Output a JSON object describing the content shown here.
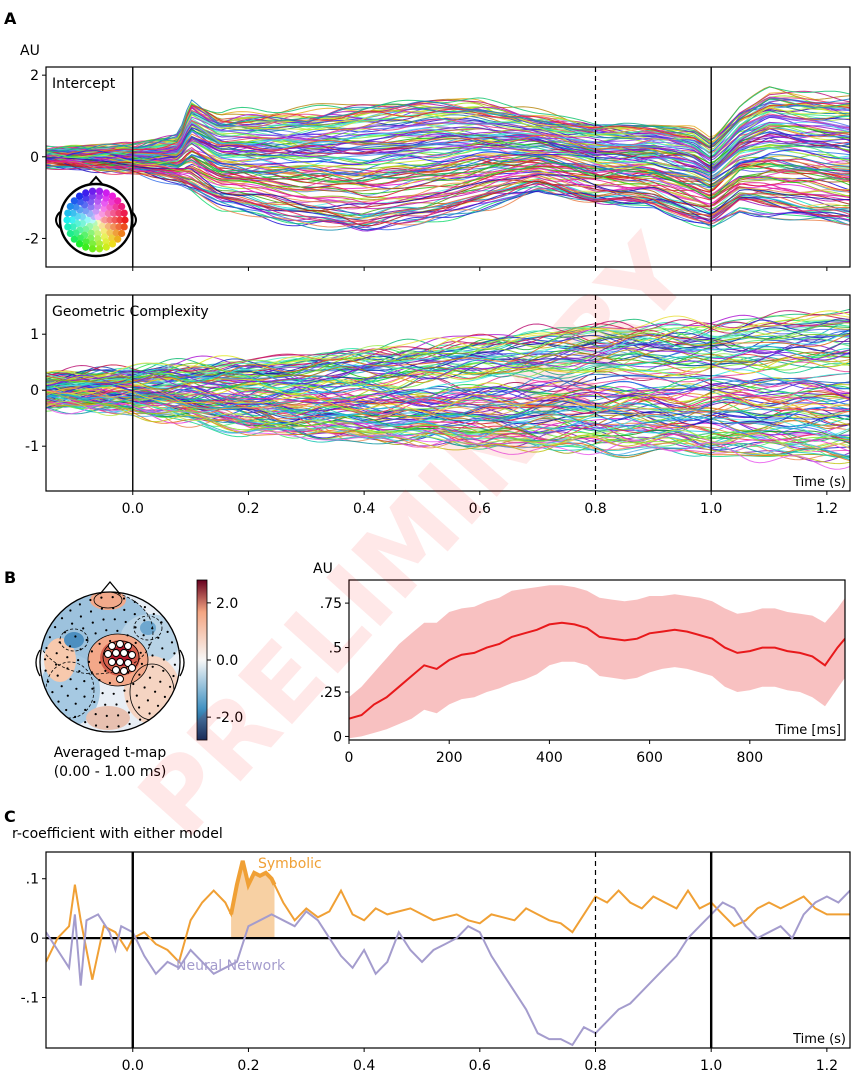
{
  "watermark": "PRELIMINARY",
  "panel_labels": {
    "a": "A",
    "b": "B",
    "c": "C"
  },
  "chart_data": [
    {
      "id": "A-intercept",
      "type": "line",
      "title": "Intercept",
      "ylabel": "AU",
      "xlabel": "Time (s)",
      "xlim": [
        -0.15,
        1.24
      ],
      "ylim": [
        -2.7,
        2.2
      ],
      "y_ticks": [
        {
          "v": 2,
          "label": "2"
        },
        {
          "v": 0,
          "label": "0"
        },
        {
          "v": -2,
          "label": "-2"
        }
      ],
      "x_ticks": [
        0.0,
        0.2,
        0.4,
        0.6,
        0.8,
        1.0,
        1.2
      ],
      "vlines": [
        {
          "x": 0.0,
          "style": "solid"
        },
        {
          "x": 0.8,
          "style": "dashed"
        },
        {
          "x": 1.0,
          "style": "solid"
        }
      ],
      "n_channels": 128,
      "channel_colors": "topographic hue (legend: colored sensor head map)",
      "envelope": {
        "x": [
          -0.15,
          0.0,
          0.08,
          0.1,
          0.15,
          0.2,
          0.3,
          0.4,
          0.5,
          0.6,
          0.7,
          0.8,
          0.9,
          0.97,
          1.0,
          1.05,
          1.1,
          1.24
        ],
        "upper": [
          0.2,
          0.3,
          0.6,
          1.6,
          1.2,
          1.3,
          1.4,
          1.6,
          1.7,
          1.6,
          1.2,
          1.0,
          1.0,
          0.9,
          0.6,
          1.4,
          1.9,
          1.8
        ],
        "lower": [
          -0.2,
          -0.4,
          -0.7,
          -1.0,
          -1.4,
          -1.6,
          -1.9,
          -2.1,
          -1.9,
          -1.5,
          -1.0,
          -1.3,
          -1.4,
          -1.8,
          -1.9,
          -1.5,
          -1.7,
          -2.0
        ]
      }
    },
    {
      "id": "A-complexity",
      "type": "line",
      "title": "Geometric Complexity",
      "xlabel": "Time (s)",
      "xlim": [
        -0.15,
        1.24
      ],
      "ylim": [
        -1.8,
        1.7
      ],
      "y_ticks": [
        {
          "v": 1,
          "label": "1"
        },
        {
          "v": 0,
          "label": "0"
        },
        {
          "v": -1,
          "label": "-1"
        }
      ],
      "x_ticks": [
        0.0,
        0.2,
        0.4,
        0.6,
        0.8,
        1.0,
        1.2
      ],
      "x_tick_labels": [
        "0.0",
        "0.2",
        "0.4",
        "0.6",
        "0.8",
        "1.0",
        "1.2"
      ],
      "vlines": [
        {
          "x": 0.0,
          "style": "solid"
        },
        {
          "x": 0.8,
          "style": "dashed"
        },
        {
          "x": 1.0,
          "style": "solid"
        }
      ],
      "n_channels": 128,
      "envelope": {
        "x": [
          -0.15,
          0.0,
          0.2,
          0.4,
          0.6,
          0.8,
          1.0,
          1.24
        ],
        "upper": [
          0.3,
          0.4,
          0.6,
          0.8,
          1.1,
          1.3,
          1.4,
          1.6
        ],
        "lower": [
          -0.3,
          -0.4,
          -0.8,
          -1.0,
          -1.2,
          -1.2,
          -1.3,
          -1.5
        ]
      }
    },
    {
      "id": "B-topomap",
      "type": "heatmap",
      "caption": [
        "Averaged t-map",
        "(0.00 - 1.00 ms)"
      ],
      "colorbar": {
        "range": [
          -2.8,
          2.8
        ],
        "ticks": [
          {
            "v": 2.0,
            "label": "2.0"
          },
          {
            "v": 0.0,
            "label": "0.0"
          },
          {
            "v": -2.0,
            "label": "-2.0"
          }
        ],
        "low_color": "#2166ac",
        "mid_color": "#f7f7f7",
        "high_color": "#67001f"
      }
    },
    {
      "id": "B-timecourse",
      "type": "area",
      "ylabel": "AU",
      "xlabel": "Time [ms]",
      "xlim": [
        0,
        990
      ],
      "ylim": [
        -0.02,
        0.88
      ],
      "y_ticks": [
        {
          "v": 0.75,
          "label": ".75"
        },
        {
          "v": 0.5,
          "label": ".5"
        },
        {
          "v": 0.25,
          "label": ".25"
        },
        {
          "v": 0,
          "label": "0"
        }
      ],
      "x_ticks": [
        0,
        200,
        400,
        600,
        800
      ],
      "x_tick_labels": [
        "0",
        "200",
        "400",
        "600",
        "800"
      ],
      "series": [
        {
          "x": [
            0,
            25,
            50,
            75,
            100,
            125,
            150,
            175,
            200,
            225,
            250,
            275,
            300,
            325,
            350,
            375,
            400,
            425,
            450,
            475,
            500,
            525,
            550,
            575,
            600,
            625,
            650,
            675,
            700,
            725,
            750,
            775,
            800,
            825,
            850,
            875,
            900,
            925,
            950,
            975,
            990
          ],
          "mean": [
            0.1,
            0.12,
            0.18,
            0.22,
            0.28,
            0.34,
            0.4,
            0.38,
            0.43,
            0.46,
            0.47,
            0.5,
            0.52,
            0.56,
            0.58,
            0.6,
            0.63,
            0.64,
            0.63,
            0.61,
            0.56,
            0.55,
            0.54,
            0.55,
            0.58,
            0.59,
            0.6,
            0.59,
            0.57,
            0.55,
            0.5,
            0.47,
            0.48,
            0.5,
            0.5,
            0.48,
            0.47,
            0.45,
            0.4,
            0.5,
            0.55
          ],
          "upper": [
            0.22,
            0.28,
            0.36,
            0.44,
            0.52,
            0.58,
            0.64,
            0.64,
            0.7,
            0.72,
            0.73,
            0.76,
            0.78,
            0.82,
            0.83,
            0.84,
            0.85,
            0.85,
            0.84,
            0.82,
            0.78,
            0.77,
            0.76,
            0.77,
            0.79,
            0.79,
            0.8,
            0.79,
            0.78,
            0.76,
            0.72,
            0.69,
            0.7,
            0.72,
            0.72,
            0.7,
            0.69,
            0.68,
            0.64,
            0.72,
            0.78
          ],
          "lower": [
            -0.01,
            0.0,
            0.02,
            0.04,
            0.07,
            0.1,
            0.15,
            0.13,
            0.18,
            0.21,
            0.22,
            0.25,
            0.27,
            0.3,
            0.32,
            0.35,
            0.4,
            0.42,
            0.42,
            0.4,
            0.34,
            0.33,
            0.32,
            0.33,
            0.36,
            0.38,
            0.39,
            0.38,
            0.36,
            0.34,
            0.28,
            0.25,
            0.26,
            0.28,
            0.28,
            0.26,
            0.25,
            0.22,
            0.17,
            0.27,
            0.33
          ],
          "color": "#e8191b",
          "band_color": "#f7b6b6"
        }
      ]
    },
    {
      "id": "C-correlation",
      "type": "line",
      "ylabel": "r-coefficient with either model",
      "xlabel": "Time (s)",
      "xlim": [
        -0.15,
        1.24
      ],
      "ylim": [
        -0.185,
        0.145
      ],
      "y_ticks": [
        {
          "v": 0.1,
          "label": ".1"
        },
        {
          "v": 0,
          "label": "0"
        },
        {
          "v": -0.1,
          "label": "-.1"
        }
      ],
      "x_ticks": [
        0.0,
        0.2,
        0.4,
        0.6,
        0.8,
        1.0,
        1.2
      ],
      "x_tick_labels": [
        "0.0",
        "0.2",
        "0.4",
        "0.6",
        "0.8",
        "1.0",
        "1.2"
      ],
      "vlines": [
        {
          "x": 0.0,
          "style": "solid-thick"
        },
        {
          "x": 0.8,
          "style": "dashed"
        },
        {
          "x": 1.0,
          "style": "solid-thick"
        }
      ],
      "significant_window": {
        "x0": 0.17,
        "x1": 0.245,
        "color": "#f5c48c"
      },
      "series": [
        {
          "name": "Symbolic",
          "color": "#f0a035",
          "x": [
            -0.15,
            -0.13,
            -0.11,
            -0.1,
            -0.09,
            -0.07,
            -0.05,
            -0.03,
            -0.01,
            0.0,
            0.02,
            0.04,
            0.06,
            0.08,
            0.1,
            0.12,
            0.14,
            0.16,
            0.17,
            0.18,
            0.19,
            0.2,
            0.21,
            0.22,
            0.23,
            0.24,
            0.26,
            0.28,
            0.3,
            0.32,
            0.34,
            0.36,
            0.38,
            0.4,
            0.42,
            0.44,
            0.46,
            0.48,
            0.5,
            0.52,
            0.54,
            0.56,
            0.58,
            0.6,
            0.62,
            0.64,
            0.66,
            0.68,
            0.7,
            0.72,
            0.74,
            0.76,
            0.78,
            0.8,
            0.82,
            0.84,
            0.86,
            0.88,
            0.9,
            0.92,
            0.94,
            0.96,
            0.98,
            1.0,
            1.02,
            1.04,
            1.06,
            1.08,
            1.1,
            1.12,
            1.14,
            1.16,
            1.18,
            1.2,
            1.22,
            1.24
          ],
          "y": [
            -0.04,
            0.0,
            0.02,
            0.09,
            0.03,
            -0.07,
            0.02,
            0.01,
            -0.02,
            0.0,
            0.01,
            -0.01,
            -0.02,
            -0.04,
            0.03,
            0.06,
            0.08,
            0.06,
            0.04,
            0.09,
            0.13,
            0.09,
            0.11,
            0.105,
            0.11,
            0.1,
            0.06,
            0.03,
            0.05,
            0.035,
            0.045,
            0.08,
            0.04,
            0.03,
            0.05,
            0.04,
            0.045,
            0.05,
            0.04,
            0.03,
            0.035,
            0.04,
            0.03,
            0.025,
            0.04,
            0.035,
            0.03,
            0.05,
            0.04,
            0.03,
            0.025,
            0.01,
            0.04,
            0.07,
            0.06,
            0.08,
            0.06,
            0.05,
            0.07,
            0.06,
            0.05,
            0.08,
            0.05,
            0.06,
            0.04,
            0.02,
            0.03,
            0.05,
            0.06,
            0.05,
            0.06,
            0.07,
            0.05,
            0.04,
            0.04,
            0.04
          ]
        },
        {
          "name": "Neural Network",
          "color": "#a49ccd",
          "x": [
            -0.15,
            -0.13,
            -0.11,
            -0.1,
            -0.09,
            -0.08,
            -0.06,
            -0.04,
            -0.03,
            -0.02,
            0.0,
            0.02,
            0.04,
            0.06,
            0.08,
            0.1,
            0.12,
            0.14,
            0.16,
            0.18,
            0.2,
            0.22,
            0.24,
            0.26,
            0.28,
            0.3,
            0.32,
            0.34,
            0.36,
            0.38,
            0.4,
            0.42,
            0.44,
            0.46,
            0.48,
            0.5,
            0.52,
            0.54,
            0.56,
            0.58,
            0.6,
            0.62,
            0.64,
            0.66,
            0.68,
            0.7,
            0.72,
            0.74,
            0.76,
            0.78,
            0.8,
            0.82,
            0.84,
            0.86,
            0.88,
            0.9,
            0.92,
            0.94,
            0.96,
            0.98,
            1.0,
            1.02,
            1.04,
            1.06,
            1.08,
            1.1,
            1.12,
            1.14,
            1.16,
            1.18,
            1.2,
            1.22,
            1.24
          ],
          "y": [
            0.01,
            -0.02,
            -0.05,
            0.04,
            -0.08,
            0.03,
            0.04,
            0.01,
            -0.02,
            0.02,
            0.01,
            -0.03,
            -0.06,
            -0.04,
            -0.05,
            -0.02,
            -0.04,
            -0.06,
            -0.05,
            -0.04,
            0.02,
            0.03,
            0.04,
            0.03,
            0.02,
            0.045,
            0.03,
            0.0,
            -0.03,
            -0.05,
            -0.02,
            -0.06,
            -0.04,
            0.01,
            -0.02,
            -0.04,
            -0.02,
            -0.01,
            0.0,
            0.02,
            0.01,
            -0.03,
            -0.06,
            -0.09,
            -0.12,
            -0.16,
            -0.17,
            -0.17,
            -0.18,
            -0.15,
            -0.16,
            -0.14,
            -0.12,
            -0.11,
            -0.09,
            -0.07,
            -0.05,
            -0.03,
            0.0,
            0.02,
            0.04,
            0.06,
            0.05,
            0.02,
            0.0,
            0.01,
            0.02,
            0.0,
            0.04,
            0.06,
            0.07,
            0.06,
            0.08
          ]
        }
      ]
    }
  ]
}
